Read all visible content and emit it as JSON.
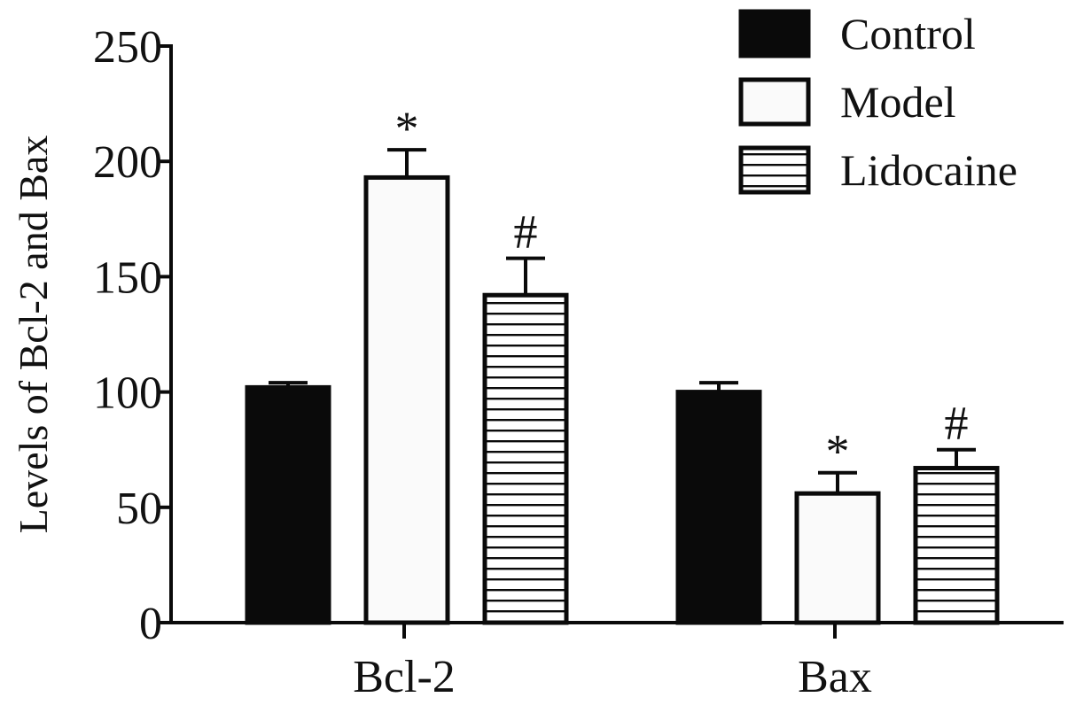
{
  "chart_data": {
    "type": "bar",
    "ylabel": "Levels  of Bcl-2 and Bax",
    "xlabel": "",
    "categories": [
      "Bcl-2",
      "Bax"
    ],
    "ylim": [
      0,
      250
    ],
    "yticks": [
      "0",
      "50",
      "100",
      "150",
      "200",
      "250"
    ],
    "series": [
      {
        "name": "Control",
        "values": [
          102,
          100
        ],
        "errors": [
          2,
          4
        ],
        "fill": "solid"
      },
      {
        "name": "Model",
        "values": [
          193,
          56
        ],
        "errors": [
          12,
          9
        ],
        "fill": "open"
      },
      {
        "name": "Lidocaine",
        "values": [
          142,
          67
        ],
        "errors": [
          16,
          8
        ],
        "fill": "hlines"
      }
    ],
    "annotations": [
      {
        "category": 0,
        "series": 1,
        "text": "*"
      },
      {
        "category": 0,
        "series": 2,
        "text": "#"
      },
      {
        "category": 1,
        "series": 1,
        "text": "*"
      },
      {
        "category": 1,
        "series": 2,
        "text": "#"
      }
    ],
    "legend": "top-right",
    "grid": false,
    "colors": {
      "bar_dark": "#0a0a0a",
      "bar_light": "#fafafa",
      "outline": "#0a0a0a"
    }
  }
}
